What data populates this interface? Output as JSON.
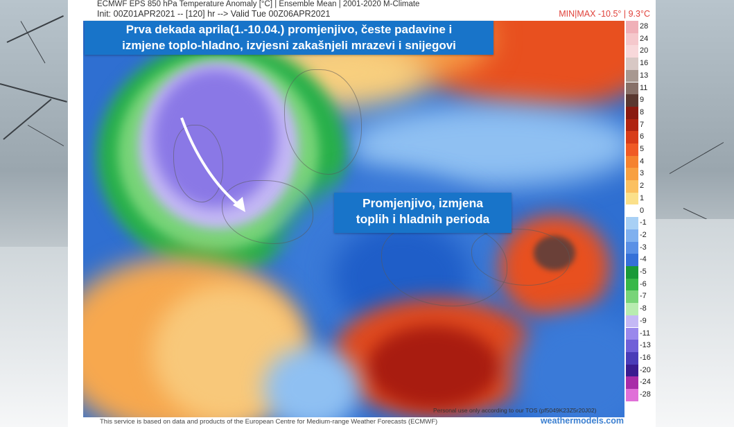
{
  "header": {
    "line1": "ECMWF EPS 850 hPa Temperature Anomaly [°C] | Ensemble Mean | 2001-2020 M-Climate",
    "line2": "Init: 00Z01APR2021 -- [120] hr --> Valid Tue 00Z06APR2021",
    "minmax": "MIN|MAX -10.5° | 9.3°C"
  },
  "callouts": {
    "top_line1": "Prva dekada aprila(1.-10.04.) promjenjivo, česte padavine i",
    "top_line2": "izmjene toplo-hladno, izvjesni zakašnjeli mrazevi i snijegovi",
    "mid_line1": "Promjenjivo, izmjena",
    "mid_line2": "toplih i hladnih perioda"
  },
  "legend": {
    "labels": [
      "28",
      "24",
      "20",
      "16",
      "13",
      "11",
      "9",
      "8",
      "7",
      "6",
      "5",
      "4",
      "3",
      "2",
      "1",
      "0",
      "-1",
      "-2",
      "-3",
      "-4",
      "-5",
      "-6",
      "-7",
      "-8",
      "-9",
      "-11",
      "-13",
      "-16",
      "-20",
      "-24",
      "-28"
    ],
    "colors": [
      "#f0b0b8",
      "#f5c8cc",
      "#f8d8da",
      "#d8c8c4",
      "#a89890",
      "#887068",
      "#5a3830",
      "#8a1a10",
      "#b02410",
      "#d83c18",
      "#f05a24",
      "#f5822e",
      "#f8a040",
      "#fbc060",
      "#fbe08a",
      "#ffffff",
      "#a8d0f5",
      "#7fb0ef",
      "#5a90e6",
      "#3570d8",
      "#1a9a38",
      "#38b848",
      "#78d478",
      "#b8ecb0",
      "#c4b8f5",
      "#9a88ec",
      "#7060d8",
      "#4a3cb8",
      "#3a1c90",
      "#a82ca8",
      "#e070d8"
    ]
  },
  "footer": {
    "text": "This service is based on data and products of the European Centre for Medium-range Weather Forecasts (ECMWF)",
    "brand": "weathermodels.com",
    "credit": "Personal use only according to our TOS (pf5049K23Z5r20J02)"
  }
}
